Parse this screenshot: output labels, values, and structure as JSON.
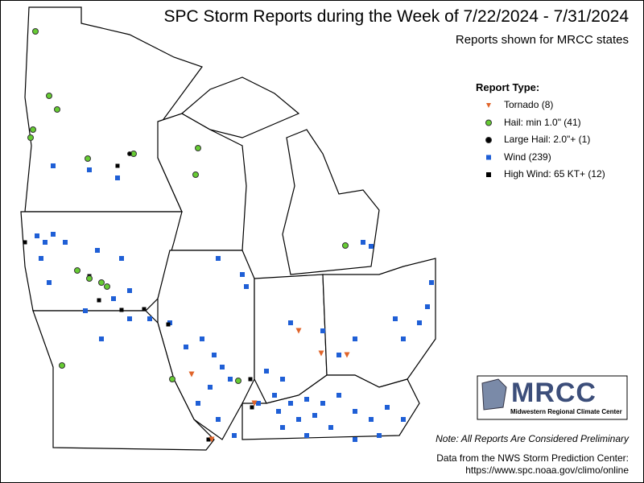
{
  "header": {
    "title": "SPC Storm Reports during the Week of 7/22/2024 - 7/31/2024",
    "subtitle": "Reports shown for MRCC states"
  },
  "legend": {
    "title": "Report Type:",
    "items": [
      {
        "label": "Tornado (8)",
        "shape": "triangle",
        "color": "#e0642a"
      },
      {
        "label": "Hail: min 1.0\" (41)",
        "shape": "circle",
        "color": "#66cc33"
      },
      {
        "label": "Large Hail: 2.0\"+ (1)",
        "shape": "circle",
        "color": "#000000"
      },
      {
        "label": "Wind (239)",
        "shape": "square",
        "color": "#1f5fd6"
      },
      {
        "label": "High Wind: 65 KT+ (12)",
        "shape": "square",
        "color": "#000000"
      }
    ]
  },
  "logo": {
    "name": "MRCC",
    "subtitle": "Midwestern Regional Climate Center"
  },
  "footer": {
    "note": "Note: All Reports Are Considered Preliminary",
    "source": "Data from the NWS Storm Prediction Center:",
    "url": "https://www.spc.noaa.gov/climo/online"
  }
}
